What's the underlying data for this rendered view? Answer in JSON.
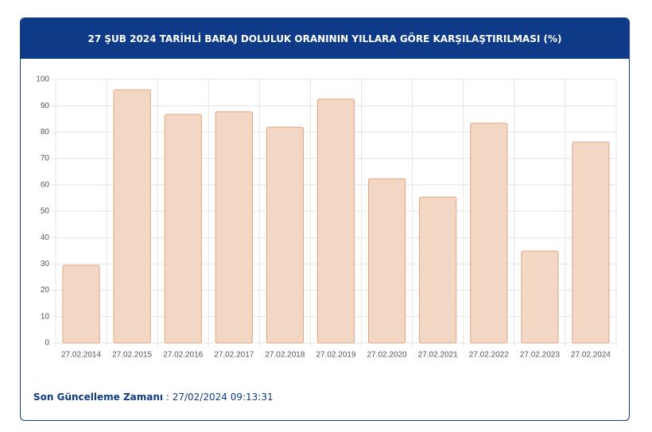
{
  "chart_data": {
    "type": "bar",
    "title": "27 ŞUB 2024 TARİHLİ BARAJ DOLULUK ORANININ YILLARA GÖRE KARŞILAŞTIRILMASI (%)",
    "categories": [
      "27.02.2014",
      "27.02.2015",
      "27.02.2016",
      "27.02.2017",
      "27.02.2018",
      "27.02.2019",
      "27.02.2020",
      "27.02.2021",
      "27.02.2022",
      "27.02.2023",
      "27.02.2024"
    ],
    "values": [
      29.5,
      96.1,
      86.7,
      87.7,
      81.9,
      92.5,
      62.3,
      55.4,
      83.4,
      34.9,
      76.2
    ],
    "color": "#f3d7c5",
    "border_color": "#e2a57f",
    "ylim": [
      0,
      100
    ],
    "yticks": [
      0,
      10,
      20,
      30,
      40,
      50,
      60,
      70,
      80,
      90,
      100
    ],
    "grid": true
  },
  "footer": {
    "label": "Son Güncelleme Zamanı",
    "value": " : 27/02/2024 09:13:31"
  }
}
